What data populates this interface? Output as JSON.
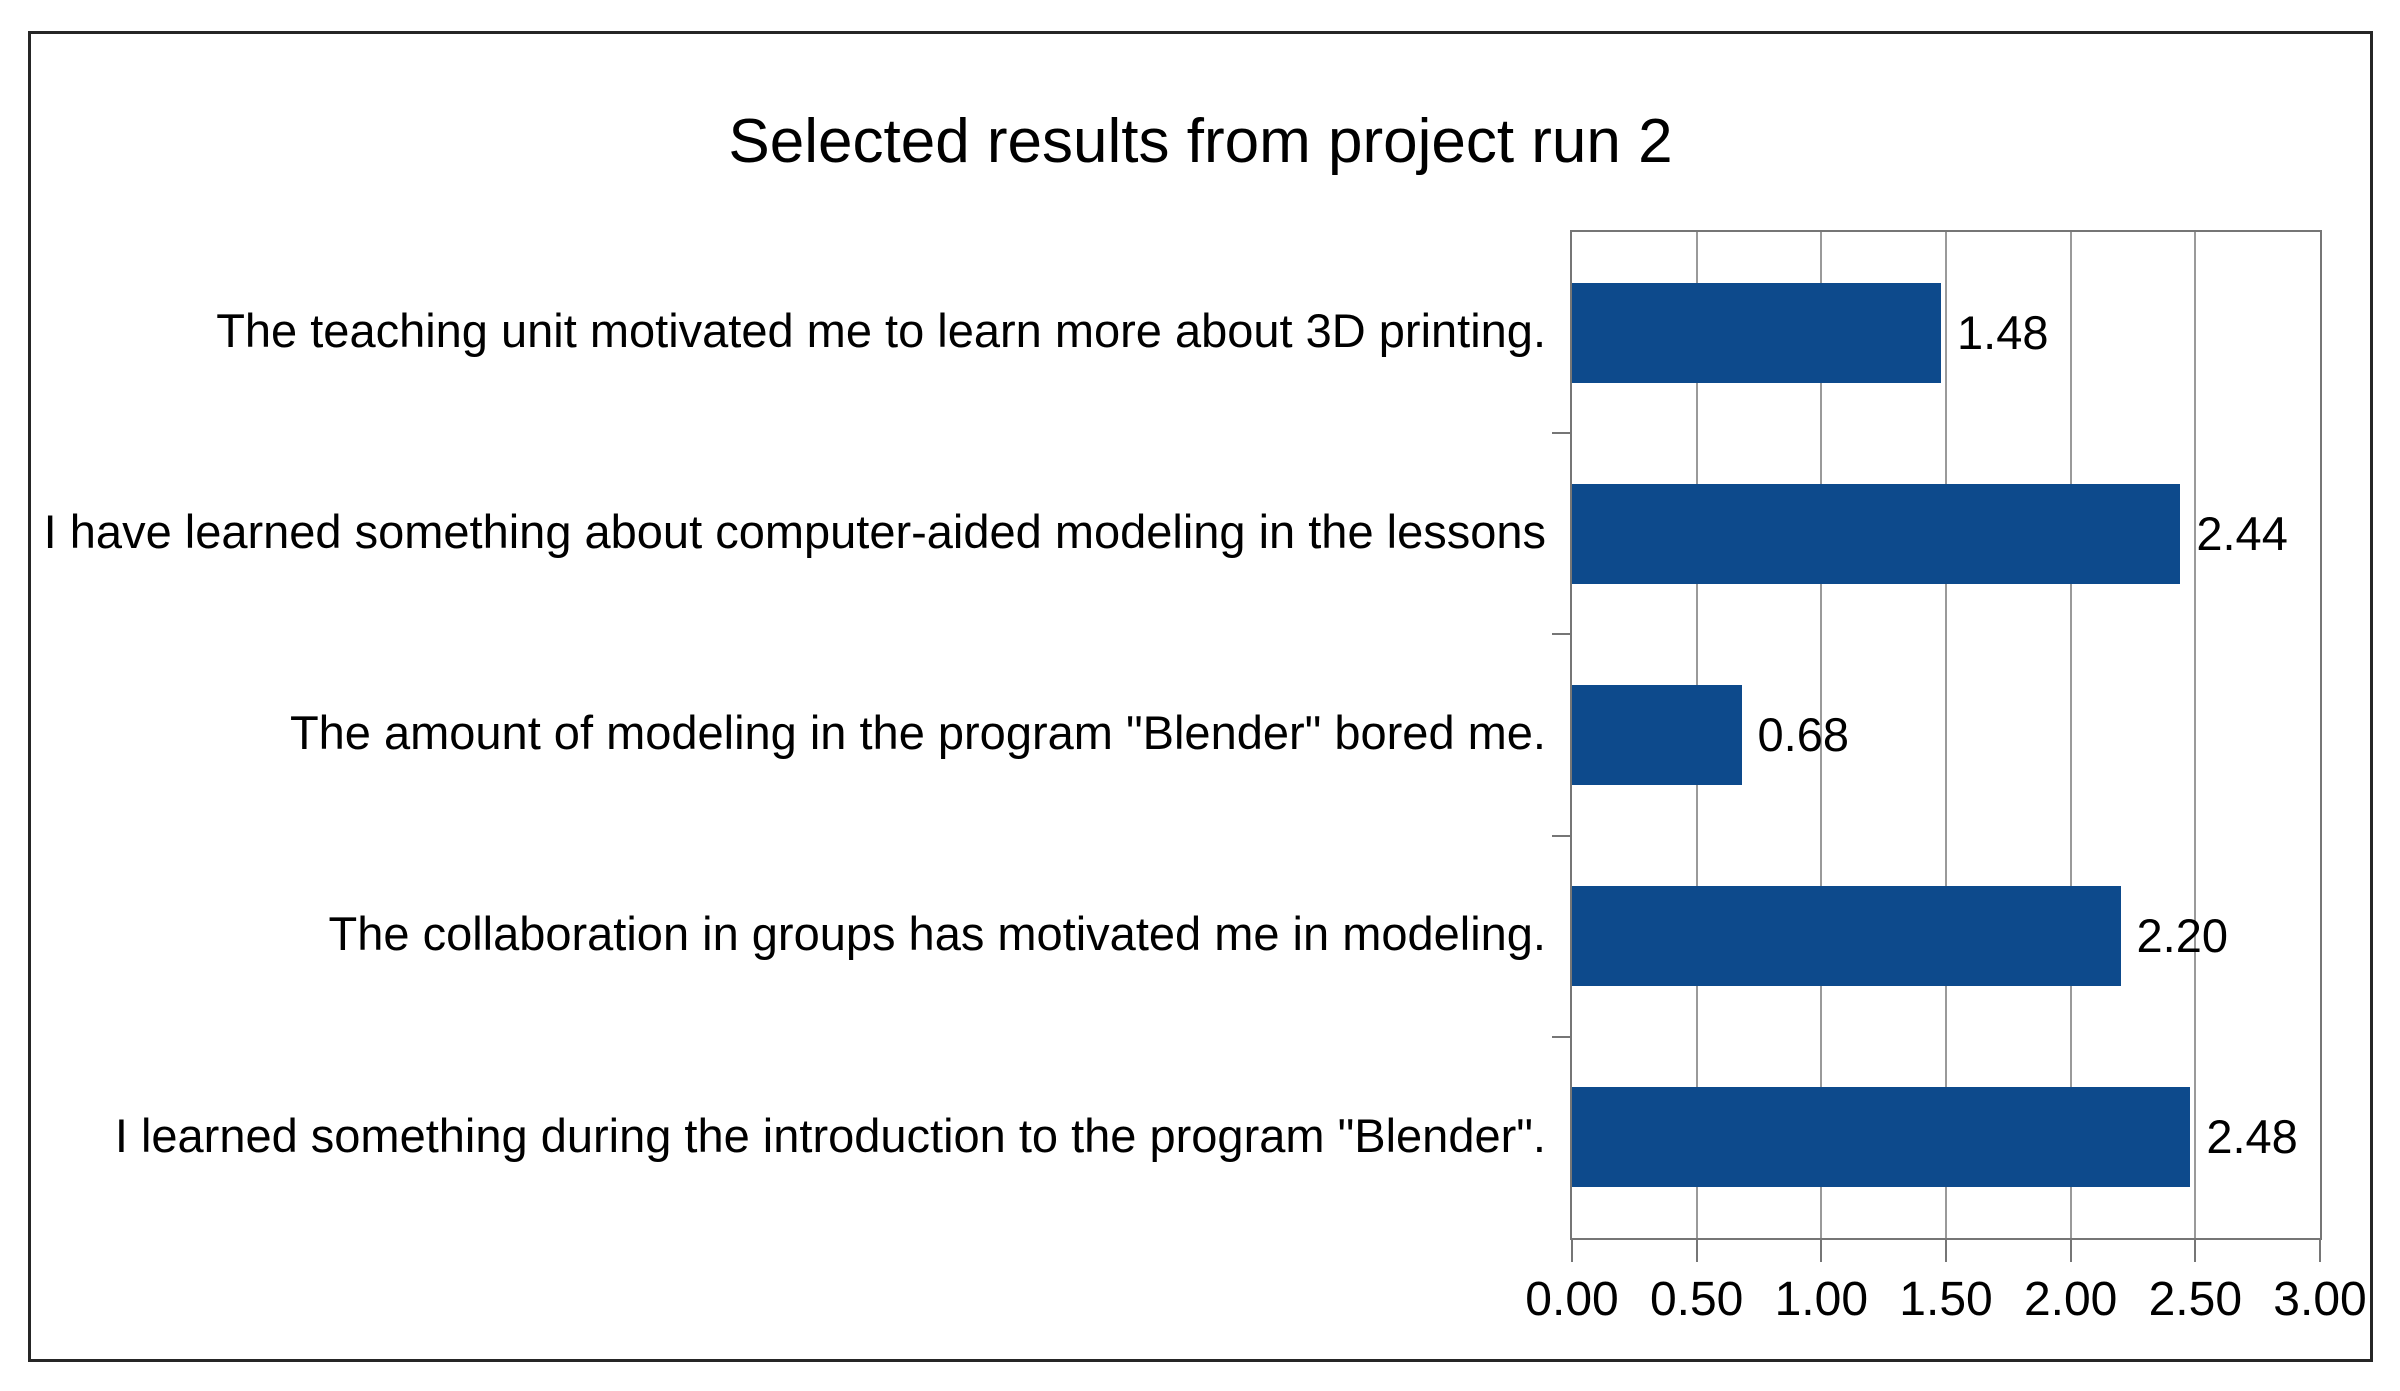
{
  "chart_data": {
    "type": "bar",
    "orientation": "horizontal",
    "title": "Selected results from project run 2",
    "categories": [
      "The teaching unit motivated me to learn more about 3D printing.",
      "I have learned something about computer-aided modeling in the lessons",
      "The amount of modeling in the program \"Blender\" bored me.",
      "The collaboration in groups has motivated me in modeling.",
      "I learned something during the introduction to the program \"Blender\"."
    ],
    "values": [
      1.48,
      2.44,
      0.68,
      2.2,
      2.48
    ],
    "value_labels": [
      "1.48",
      "2.44",
      "0.68",
      "2.20",
      "2.48"
    ],
    "xlim": [
      0,
      3
    ],
    "x_tick_values": [
      0,
      0.5,
      1,
      1.5,
      2,
      2.5,
      3
    ],
    "x_ticks": [
      "0.00",
      "0.50",
      "1.00",
      "1.50",
      "2.00",
      "2.50",
      "3.00"
    ],
    "grid": "vertical-major",
    "legend": "none",
    "colors": {
      "bar": "#0d4a8c",
      "gridline": "#9a9a9a",
      "axis": "#767676",
      "text": "#000000",
      "frame_border": "#262626"
    }
  }
}
